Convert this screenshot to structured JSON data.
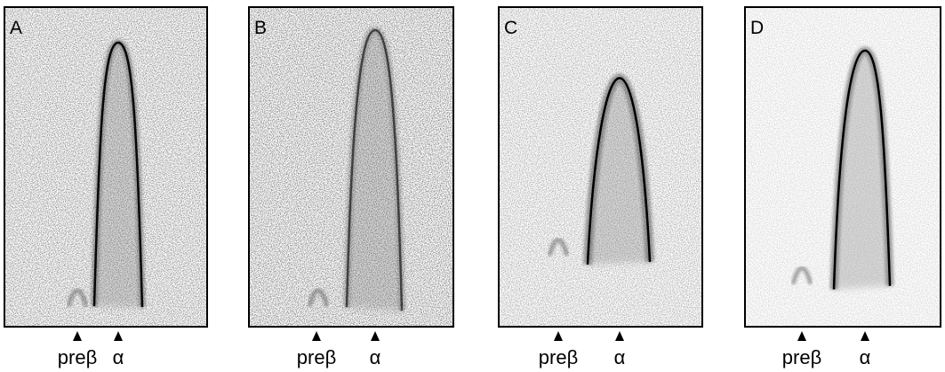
{
  "panels": [
    {
      "letter": "A",
      "markers": [
        "preβ",
        "α"
      ]
    },
    {
      "letter": "B",
      "markers": [
        "preβ",
        "α"
      ]
    },
    {
      "letter": "C",
      "markers": [
        "preβ",
        "α"
      ]
    },
    {
      "letter": "D",
      "markers": [
        "preβ",
        "α"
      ]
    }
  ]
}
